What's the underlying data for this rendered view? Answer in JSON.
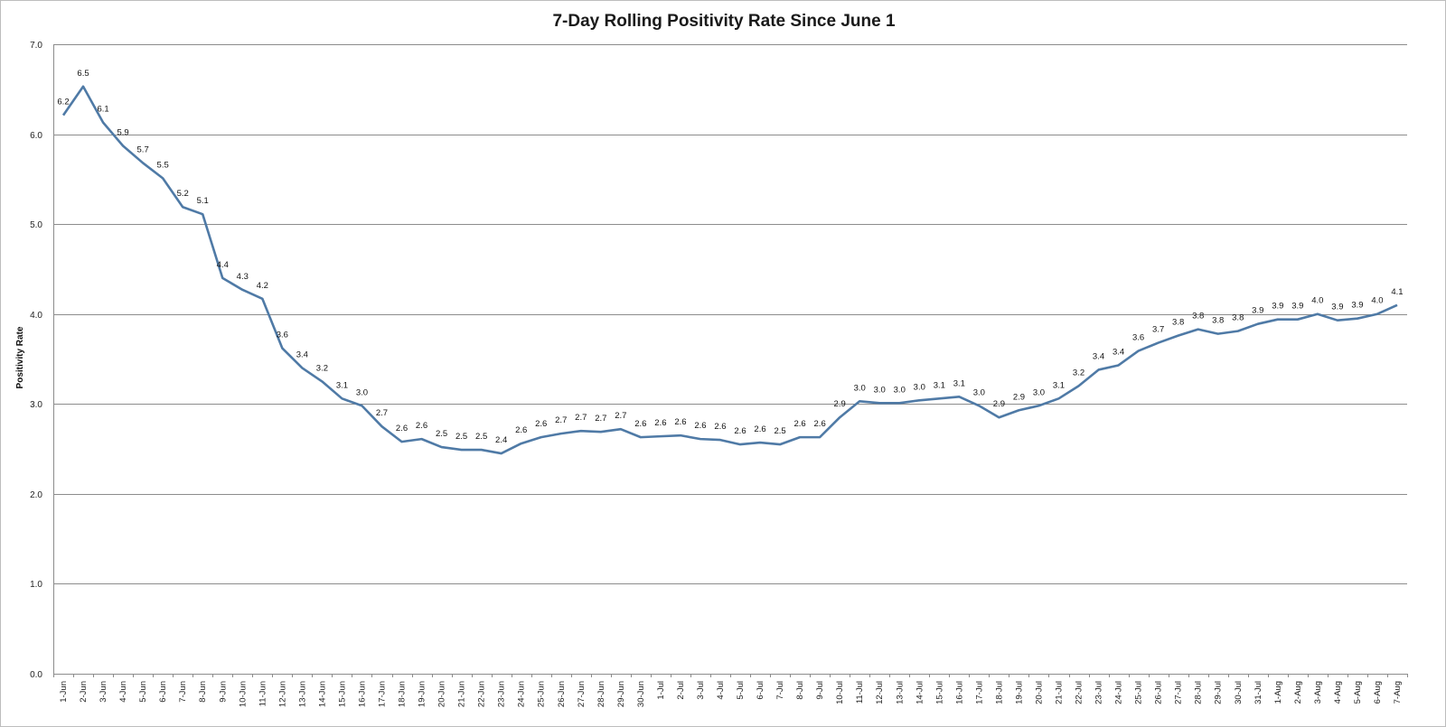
{
  "chart_data": {
    "type": "line",
    "title": "7-Day Rolling Positivity Rate Since June 1",
    "xlabel": "",
    "ylabel": "Positivity Rate",
    "ylim": [
      0,
      7
    ],
    "yticks": [
      "0.0",
      "1.0",
      "2.0",
      "3.0",
      "4.0",
      "5.0",
      "6.0",
      "7.0"
    ],
    "grid": true,
    "legend": "none",
    "line_color": "#4f7aa6",
    "categories": [
      "1-Jun",
      "2-Jun",
      "3-Jun",
      "4-Jun",
      "5-Jun",
      "6-Jun",
      "7-Jun",
      "8-Jun",
      "9-Jun",
      "10-Jun",
      "11-Jun",
      "12-Jun",
      "13-Jun",
      "14-Jun",
      "15-Jun",
      "16-Jun",
      "17-Jun",
      "18-Jun",
      "19-Jun",
      "20-Jun",
      "21-Jun",
      "22-Jun",
      "23-Jun",
      "24-Jun",
      "25-Jun",
      "26-Jun",
      "27-Jun",
      "28-Jun",
      "29-Jun",
      "30-Jun",
      "1-Jul",
      "2-Jul",
      "3-Jul",
      "4-Jul",
      "5-Jul",
      "6-Jul",
      "7-Jul",
      "8-Jul",
      "9-Jul",
      "10-Jul",
      "11-Jul",
      "12-Jul",
      "13-Jul",
      "14-Jul",
      "15-Jul",
      "16-Jul",
      "17-Jul",
      "18-Jul",
      "19-Jul",
      "20-Jul",
      "21-Jul",
      "22-Jul",
      "23-Jul",
      "24-Jul",
      "25-Jul",
      "26-Jul",
      "27-Jul",
      "28-Jul",
      "29-Jul",
      "30-Jul",
      "31-Jul",
      "1-Aug",
      "2-Aug",
      "3-Aug",
      "4-Aug",
      "5-Aug",
      "6-Aug",
      "7-Aug"
    ],
    "values": [
      6.2,
      6.5,
      6.1,
      5.9,
      5.7,
      5.5,
      5.2,
      5.1,
      4.4,
      4.3,
      4.2,
      3.6,
      3.4,
      3.2,
      3.1,
      3.0,
      2.7,
      2.6,
      2.6,
      2.5,
      2.5,
      2.5,
      2.4,
      2.6,
      2.6,
      2.7,
      2.7,
      2.7,
      2.7,
      2.6,
      2.6,
      2.6,
      2.6,
      2.6,
      2.6,
      2.6,
      2.5,
      2.6,
      2.6,
      2.9,
      3.0,
      3.0,
      3.0,
      3.0,
      3.1,
      3.1,
      3.0,
      2.9,
      2.9,
      3.0,
      3.1,
      3.2,
      3.4,
      3.4,
      3.6,
      3.7,
      3.8,
      3.8,
      3.8,
      3.8,
      3.9,
      3.9,
      3.9,
      4.0,
      3.9,
      3.9,
      4.0,
      4.1
    ],
    "plotted_values": [
      6.21,
      6.53,
      6.13,
      5.87,
      5.68,
      5.51,
      5.19,
      5.11,
      4.4,
      4.27,
      4.17,
      3.62,
      3.4,
      3.25,
      3.06,
      2.98,
      2.75,
      2.58,
      2.61,
      2.52,
      2.49,
      2.49,
      2.45,
      2.56,
      2.63,
      2.67,
      2.7,
      2.69,
      2.72,
      2.63,
      2.64,
      2.65,
      2.61,
      2.6,
      2.55,
      2.57,
      2.55,
      2.63,
      2.63,
      2.85,
      3.03,
      3.01,
      3.01,
      3.04,
      3.06,
      3.08,
      2.98,
      2.85,
      2.93,
      2.98,
      3.06,
      3.2,
      3.38,
      3.43,
      3.59,
      3.68,
      3.76,
      3.83,
      3.78,
      3.81,
      3.89,
      3.94,
      3.94,
      4.0,
      3.93,
      3.95,
      4.0,
      4.1
    ]
  }
}
